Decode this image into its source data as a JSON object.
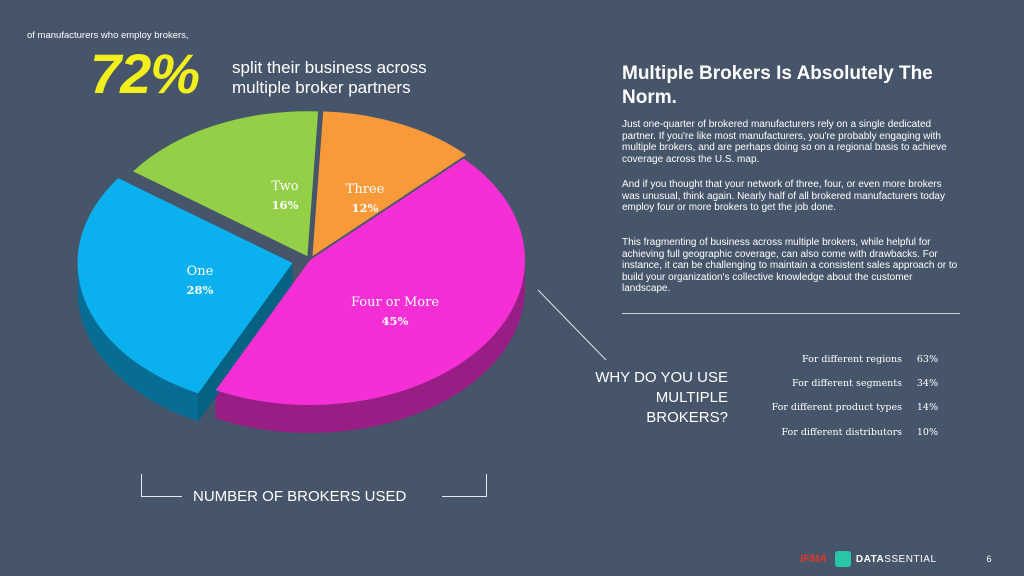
{
  "intro": "of manufacturers who employ brokers,",
  "headline_pct": "72%",
  "headline_desc": "split their business across multiple broker partners",
  "chart_data": {
    "type": "pie",
    "xlabel": "NUMBER OF BROKERS USED",
    "slices": [
      {
        "label": "One",
        "value": 28,
        "display": "28%",
        "color": "#0bb0ee"
      },
      {
        "label": "Two",
        "value": 16,
        "display": "16%",
        "color": "#93cf47"
      },
      {
        "label": "Three",
        "value": 12,
        "display": "12%",
        "color": "#f8993a"
      },
      {
        "label": "Four or More",
        "value": 45,
        "display": "45%",
        "color": "#f52fd5"
      }
    ]
  },
  "article": {
    "heading": "Multiple Brokers Is Absolutely The Norm.",
    "paragraphs": [
      "Just one-quarter of brokered manufacturers rely on a single dedicated partner. If you're like most manufacturers, you're probably engaging with multiple brokers, and are perhaps doing so on a regional basis to achieve coverage across the U.S. map.",
      "And if you thought that your network of three, four, or even more brokers was unusual, think again. Nearly half of all brokered manufacturers today employ four or more brokers to get the job done.",
      "This fragmenting of business across multiple brokers, while helpful for achieving full geographic coverage, can also come with drawbacks.  For instance, it can be challenging to maintain a consistent sales approach or to build your organization's collective knowledge about the customer landscape."
    ]
  },
  "why": {
    "title": "WHY DO YOU USE MULTIPLE BROKERS?",
    "reasons": [
      {
        "label": "For different regions",
        "value": "63%"
      },
      {
        "label": "For different segments",
        "value": "34%"
      },
      {
        "label": "For different product types",
        "value": "14%"
      },
      {
        "label": "For different distributors",
        "value": "10%"
      }
    ]
  },
  "footer": {
    "ifma": "IFMA",
    "brand_bold": "DATA",
    "brand_rest": "SSENTIAL",
    "page": "6"
  }
}
